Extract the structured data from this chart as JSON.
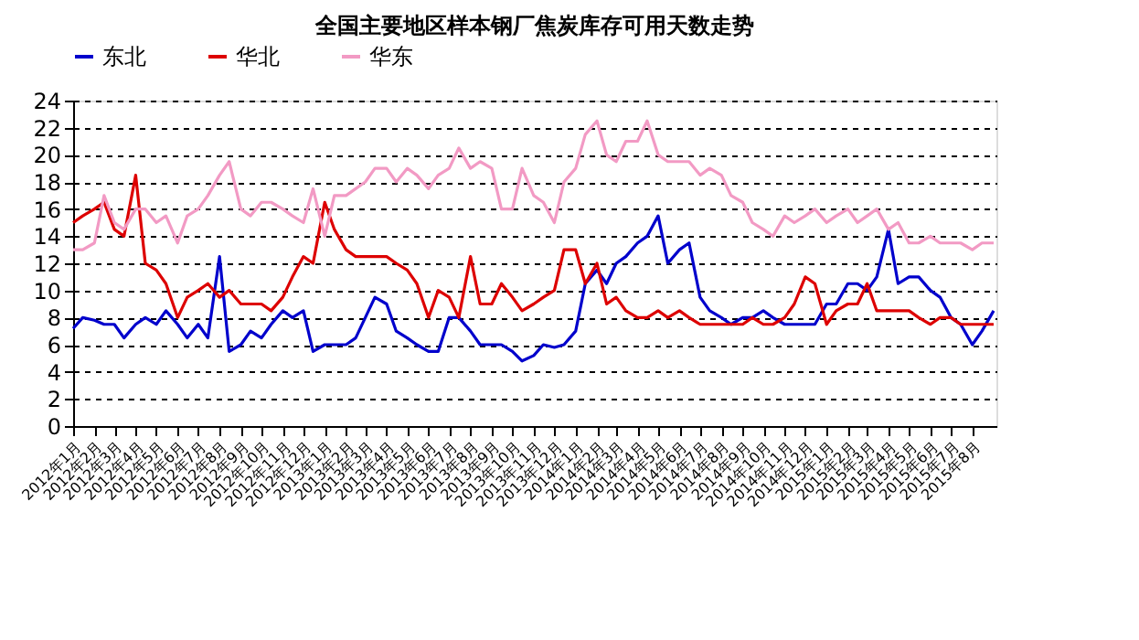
{
  "chart_data": {
    "type": "line",
    "title": "全国主要地区样本钢厂焦炭库存可用天数走势",
    "x": [
      "2012-01-01",
      "2012-01-15",
      "2012-02-01",
      "2012-02-15",
      "2012-03-01",
      "2012-03-15",
      "2012-04-01",
      "2012-04-15",
      "2012-05-01",
      "2012-05-15",
      "2012-06-01",
      "2012-06-15",
      "2012-07-01",
      "2012-07-15",
      "2012-08-01",
      "2012-08-15",
      "2012-09-01",
      "2012-09-15",
      "2012-10-01",
      "2012-10-15",
      "2012-11-01",
      "2012-11-15",
      "2012-12-01",
      "2012-12-15",
      "2013-01-01",
      "2013-01-15",
      "2013-02-01",
      "2013-02-15",
      "2013-03-01",
      "2013-03-15",
      "2013-04-01",
      "2013-04-15",
      "2013-05-01",
      "2013-05-15",
      "2013-06-01",
      "2013-06-15",
      "2013-07-01",
      "2013-07-15",
      "2013-08-01",
      "2013-08-15",
      "2013-09-01",
      "2013-09-15",
      "2013-10-01",
      "2013-10-15",
      "2013-11-01",
      "2013-11-15",
      "2013-12-01",
      "2013-12-15",
      "2014-01-01",
      "2014-01-15",
      "2014-02-01",
      "2014-02-15",
      "2014-03-01",
      "2014-03-15",
      "2014-04-01",
      "2014-04-15",
      "2014-05-01",
      "2014-05-15",
      "2014-06-01",
      "2014-06-15",
      "2014-07-01",
      "2014-07-15",
      "2014-08-01",
      "2014-08-15",
      "2014-09-01",
      "2014-09-15",
      "2014-10-01",
      "2014-10-15",
      "2014-11-01",
      "2014-11-15",
      "2014-12-01",
      "2014-12-15",
      "2015-01-01",
      "2015-01-15",
      "2015-02-01",
      "2015-02-15",
      "2015-03-01",
      "2015-03-15",
      "2015-04-01",
      "2015-04-15",
      "2015-05-01",
      "2015-05-15",
      "2015-06-01",
      "2015-06-15",
      "2015-07-01",
      "2015-07-15",
      "2015-08-01",
      "2015-08-15",
      "2015-09-01"
    ],
    "series": [
      {
        "name": "东北",
        "color": "#0000cc",
        "values": [
          7.2,
          8,
          7.8,
          7.5,
          7.5,
          6.5,
          7.5,
          8,
          7.5,
          8.5,
          7.5,
          6.5,
          7.5,
          6.5,
          12.5,
          5.5,
          6,
          7,
          6.5,
          7.5,
          8.5,
          8,
          8.5,
          5.5,
          6,
          6,
          6,
          6.5,
          8,
          9.5,
          9,
          7,
          6.5,
          6,
          5.5,
          5.5,
          8,
          8,
          7,
          6,
          6,
          6,
          5.5,
          4.8,
          5.2,
          6,
          5.8,
          6,
          7,
          10.5,
          11.5,
          10.5,
          12,
          12.5,
          13.5,
          14,
          15.5,
          12,
          13,
          13.5,
          9.5,
          8.5,
          8,
          7.5,
          8,
          8,
          8.5,
          8,
          7.5,
          7.5,
          7.5,
          7.5,
          9,
          9,
          10.5,
          10.5,
          10,
          11,
          14.5,
          10.5,
          11,
          11,
          10,
          9.5,
          8,
          7.5,
          6,
          7,
          8.5
        ]
      },
      {
        "name": "华北",
        "color": "#dd0000",
        "values": [
          15,
          15.5,
          16,
          16.5,
          14.5,
          14,
          18.5,
          12,
          11.5,
          10.5,
          8,
          9.5,
          10,
          10.5,
          9.5,
          10,
          9,
          9,
          9,
          8.5,
          9.5,
          11,
          12.5,
          12,
          16.5,
          14.5,
          13,
          12.5,
          12.5,
          12.5,
          12.5,
          12,
          11.5,
          10.5,
          8,
          10,
          9.5,
          8,
          12.5,
          9,
          9,
          10.5,
          9.5,
          8.5,
          9,
          9.5,
          10,
          13,
          13,
          10.5,
          12,
          9,
          9.5,
          8.5,
          8,
          8,
          8.5,
          8,
          8.5,
          8,
          7.5,
          7.5,
          7.5,
          7.5,
          7.5,
          8,
          7.5,
          7.5,
          8,
          9,
          11,
          10.5,
          7.5,
          8.5,
          9,
          9,
          10.5,
          8.5,
          8.5,
          8.5,
          8.5,
          8,
          7.5,
          8,
          8,
          7.5,
          7.5,
          7.5,
          7.5
        ]
      },
      {
        "name": "华东",
        "color": "#f29ac4",
        "values": [
          13,
          13,
          13.5,
          17,
          15,
          14.5,
          16,
          16,
          15,
          15.5,
          13.5,
          15.5,
          16,
          17,
          18.5,
          19.5,
          16,
          15.5,
          16.5,
          16.5,
          16,
          15.5,
          15,
          17.5,
          14,
          17,
          17,
          17.5,
          18,
          19,
          19,
          18,
          19,
          18.5,
          17.5,
          18.5,
          19,
          20.5,
          19,
          19.5,
          19,
          16,
          16,
          19,
          17,
          16.5,
          15,
          18,
          19,
          21.5,
          22.5,
          20,
          19.5,
          21,
          21,
          22.5,
          20,
          19.5,
          19.5,
          19.5,
          18.5,
          19,
          18.5,
          17,
          16.5,
          15,
          14.5,
          14,
          15.5,
          15,
          15.5,
          16,
          15,
          15.5,
          16,
          15,
          15.5,
          16,
          14.5,
          15,
          13.5,
          13.5,
          14,
          13.5,
          13.5,
          13.5,
          13,
          13.5,
          13.5
        ]
      }
    ],
    "xlim": [
      "2012-01-01",
      "2015-09-05"
    ],
    "xticks": [
      {
        "value": "2012-01-01",
        "label": "2012年1月"
      },
      {
        "value": "2012-02-01",
        "label": "2012年2月"
      },
      {
        "value": "2012-03-01",
        "label": "2012年3月"
      },
      {
        "value": "2012-04-01",
        "label": "2012年4月"
      },
      {
        "value": "2012-05-01",
        "label": "2012年5月"
      },
      {
        "value": "2012-06-01",
        "label": "2012年6月"
      },
      {
        "value": "2012-07-01",
        "label": "2012年7月"
      },
      {
        "value": "2012-08-01",
        "label": "2012年8月"
      },
      {
        "value": "2012-09-01",
        "label": "2012年9月"
      },
      {
        "value": "2012-10-01",
        "label": "2012年10月"
      },
      {
        "value": "2012-11-01",
        "label": "2012年11月"
      },
      {
        "value": "2012-12-01",
        "label": "2012年12月"
      },
      {
        "value": "2013-01-01",
        "label": "2013年1月"
      },
      {
        "value": "2013-02-01",
        "label": "2013年2月"
      },
      {
        "value": "2013-03-01",
        "label": "2013年3月"
      },
      {
        "value": "2013-04-01",
        "label": "2013年4月"
      },
      {
        "value": "2013-05-01",
        "label": "2013年5月"
      },
      {
        "value": "2013-06-01",
        "label": "2013年6月"
      },
      {
        "value": "2013-07-01",
        "label": "2013年7月"
      },
      {
        "value": "2013-08-01",
        "label": "2013年8月"
      },
      {
        "value": "2013-09-01",
        "label": "2013年9月"
      },
      {
        "value": "2013-10-01",
        "label": "2013年10月"
      },
      {
        "value": "2013-11-01",
        "label": "2013年11月"
      },
      {
        "value": "2013-12-01",
        "label": "2013年12月"
      },
      {
        "value": "2014-01-01",
        "label": "2014年1月"
      },
      {
        "value": "2014-02-01",
        "label": "2014年2月"
      },
      {
        "value": "2014-03-01",
        "label": "2014年3月"
      },
      {
        "value": "2014-04-01",
        "label": "2014年4月"
      },
      {
        "value": "2014-05-01",
        "label": "2014年5月"
      },
      {
        "value": "2014-06-01",
        "label": "2014年6月"
      },
      {
        "value": "2014-07-01",
        "label": "2014年7月"
      },
      {
        "value": "2014-08-01",
        "label": "2014年8月"
      },
      {
        "value": "2014-09-01",
        "label": "2014年9月"
      },
      {
        "value": "2014-10-01",
        "label": "2014年10月"
      },
      {
        "value": "2014-11-01",
        "label": "2014年11月"
      },
      {
        "value": "2014-12-01",
        "label": "2014年12月"
      },
      {
        "value": "2015-01-01",
        "label": "2015年1月"
      },
      {
        "value": "2015-02-01",
        "label": "2015年2月"
      },
      {
        "value": "2015-03-01",
        "label": "2015年3月"
      },
      {
        "value": "2015-04-01",
        "label": "2015年4月"
      },
      {
        "value": "2015-05-01",
        "label": "2015年5月"
      },
      {
        "value": "2015-06-01",
        "label": "2015年6月"
      },
      {
        "value": "2015-07-01",
        "label": "2015年7月"
      },
      {
        "value": "2015-08-01",
        "label": "2015年8月"
      }
    ],
    "ylim": [
      0,
      24
    ],
    "yticks": [
      0,
      2,
      4,
      6,
      8,
      10,
      12,
      14,
      16,
      18,
      20,
      22,
      24
    ],
    "grid": "y",
    "legend": "top",
    "marker": "none",
    "line_style": "solid"
  }
}
